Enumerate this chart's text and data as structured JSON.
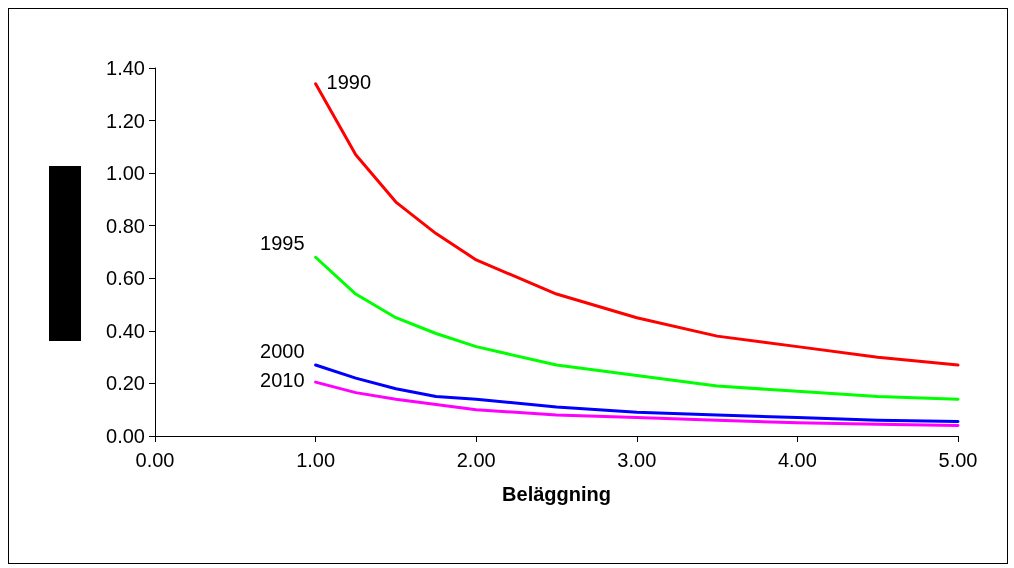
{
  "chart_data": {
    "type": "line",
    "xlabel": "Beläggning",
    "x": [
      1,
      1.25,
      1.5,
      1.75,
      2,
      2.5,
      3,
      3.5,
      4,
      4.5,
      5
    ],
    "series": [
      {
        "name": "1990",
        "color": "#ff0000",
        "values": [
          1.34,
          1.07,
          0.89,
          0.77,
          0.67,
          0.54,
          0.45,
          0.38,
          0.34,
          0.3,
          0.27
        ]
      },
      {
        "name": "1995",
        "color": "#00ff00",
        "values": [
          0.68,
          0.54,
          0.45,
          0.39,
          0.34,
          0.27,
          0.23,
          0.19,
          0.17,
          0.15,
          0.14
        ]
      },
      {
        "name": "2000",
        "color": "#0000ff",
        "values": [
          0.27,
          0.22,
          0.18,
          0.15,
          0.14,
          0.11,
          0.09,
          0.08,
          0.07,
          0.06,
          0.055
        ]
      },
      {
        "name": "2010",
        "color": "#ff00ff",
        "values": [
          0.205,
          0.165,
          0.14,
          0.12,
          0.1,
          0.08,
          0.07,
          0.06,
          0.05,
          0.045,
          0.04
        ]
      }
    ],
    "xlim": [
      0,
      5
    ],
    "xticks": [
      {
        "value": 0,
        "label": "0.00"
      },
      {
        "value": 1,
        "label": "1.00"
      },
      {
        "value": 2,
        "label": "2.00"
      },
      {
        "value": 3,
        "label": "3.00"
      },
      {
        "value": 4,
        "label": "4.00"
      },
      {
        "value": 5,
        "label": "5.00"
      }
    ],
    "ylim": [
      0,
      1.4
    ],
    "yticks": [
      {
        "value": 0,
        "label": "0.00"
      },
      {
        "value": 0.2,
        "label": "0.20"
      },
      {
        "value": 0.4,
        "label": "0.40"
      },
      {
        "value": 0.6,
        "label": "0.60"
      },
      {
        "value": 0.8,
        "label": "0.80"
      },
      {
        "value": 1,
        "label": "1.00"
      },
      {
        "value": 1.2,
        "label": "1.20"
      },
      {
        "value": 1.4,
        "label": "1.40"
      }
    ],
    "grid": false,
    "legend": false,
    "marker": "none",
    "line_style": "solid"
  }
}
